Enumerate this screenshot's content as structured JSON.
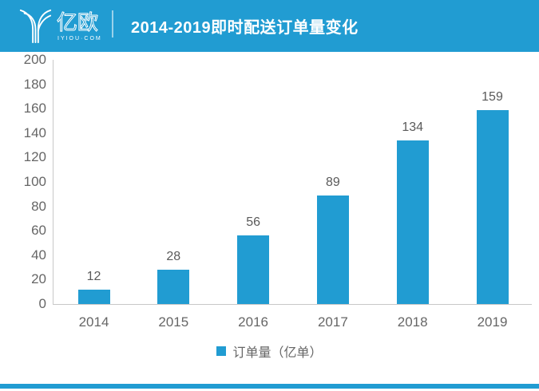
{
  "header": {
    "brand": "亿欧",
    "brand_domain": "IYIOU·COM",
    "title": "2014-2019即时配送订单量变化"
  },
  "legend": {
    "label": "订单量（亿单）"
  },
  "colors": {
    "accent": "#219CD2",
    "axis_line": "#C8C8C8",
    "label_gray": "#666666"
  },
  "chart_data": {
    "type": "bar",
    "title": "2014-2019即时配送订单量变化",
    "categories": [
      "2014",
      "2015",
      "2016",
      "2017",
      "2018",
      "2019"
    ],
    "values": [
      12,
      28,
      56,
      89,
      134,
      159
    ],
    "series_name": "订单量（亿单）",
    "ylim": [
      0,
      200
    ],
    "yticks": [
      0,
      20,
      40,
      60,
      80,
      100,
      120,
      140,
      160,
      180,
      200
    ],
    "grid": false,
    "legend_position": "bottom",
    "bar_color": "#219CD2",
    "data_labels": true
  }
}
